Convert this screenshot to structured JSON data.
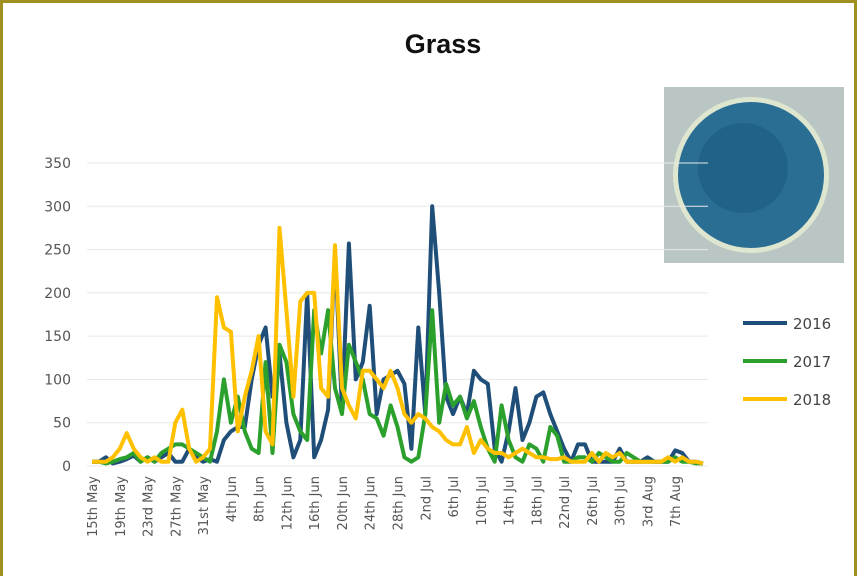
{
  "chart_data": {
    "type": "line",
    "title": "Grass",
    "categories": [
      "15th May",
      null,
      null,
      null,
      "19th May",
      null,
      null,
      null,
      "23rd May",
      null,
      null,
      null,
      "27th May",
      null,
      null,
      null,
      "31st May",
      null,
      null,
      null,
      "4th Jun",
      null,
      null,
      null,
      "8th Jun",
      null,
      null,
      null,
      "12th Jun",
      null,
      null,
      null,
      "16th Jun",
      null,
      null,
      null,
      "20th Jun",
      null,
      null,
      null,
      "24th Jun",
      null,
      null,
      null,
      "28th Jun",
      null,
      null,
      null,
      "2nd Jul",
      null,
      null,
      null,
      "6th Jul",
      null,
      null,
      null,
      "10th Jul",
      null,
      null,
      null,
      "14th Jul",
      null,
      null,
      null,
      "18th Jul",
      null,
      null,
      null,
      "22nd Jul",
      null,
      null,
      null,
      "26th Jul",
      null,
      null,
      null,
      "30th Jul",
      null,
      null,
      null,
      "3rd Aug",
      null,
      null,
      null,
      "7th Aug",
      null,
      null,
      null,
      null
    ],
    "series": [
      {
        "name": "2016",
        "color": "#1f4e79",
        "values": [
          5,
          5,
          10,
          3,
          5,
          8,
          12,
          5,
          10,
          5,
          10,
          15,
          5,
          5,
          20,
          10,
          5,
          8,
          5,
          30,
          40,
          45,
          45,
          100,
          140,
          160,
          80,
          130,
          50,
          10,
          30,
          200,
          10,
          30,
          65,
          250,
          65,
          257,
          100,
          120,
          185,
          60,
          100,
          105,
          110,
          95,
          20,
          160,
          60,
          300,
          200,
          80,
          60,
          80,
          60,
          110,
          100,
          95,
          20,
          5,
          40,
          90,
          30,
          50,
          80,
          85,
          60,
          40,
          20,
          5,
          25,
          25,
          5,
          5,
          5,
          5,
          20,
          5,
          5,
          5,
          10,
          5,
          5,
          5,
          18,
          15,
          5,
          5,
          3
        ]
      },
      {
        "name": "2017",
        "color": "#2ca02c",
        "values": [
          5,
          5,
          3,
          5,
          8,
          10,
          15,
          5,
          10,
          5,
          15,
          20,
          25,
          25,
          20,
          15,
          10,
          5,
          40,
          100,
          50,
          80,
          40,
          20,
          15,
          120,
          15,
          140,
          120,
          60,
          40,
          30,
          180,
          130,
          180,
          90,
          60,
          140,
          120,
          100,
          60,
          55,
          35,
          70,
          45,
          10,
          5,
          10,
          60,
          180,
          50,
          95,
          70,
          80,
          55,
          75,
          45,
          20,
          5,
          70,
          30,
          10,
          5,
          25,
          20,
          5,
          45,
          35,
          5,
          5,
          10,
          10,
          5,
          15,
          10,
          5,
          5,
          15,
          10,
          5,
          5,
          5,
          5,
          5,
          10,
          5,
          5,
          3,
          3
        ]
      },
      {
        "name": "2018",
        "color": "#ffc000",
        "values": [
          5,
          5,
          5,
          10,
          20,
          38,
          20,
          10,
          5,
          10,
          5,
          5,
          50,
          65,
          20,
          5,
          10,
          20,
          195,
          160,
          155,
          40,
          80,
          110,
          150,
          40,
          25,
          275,
          180,
          80,
          190,
          200,
          200,
          90,
          80,
          255,
          90,
          70,
          55,
          110,
          110,
          100,
          90,
          110,
          90,
          60,
          50,
          60,
          55,
          45,
          40,
          30,
          25,
          25,
          45,
          15,
          30,
          20,
          15,
          15,
          10,
          15,
          20,
          15,
          10,
          10,
          8,
          8,
          10,
          5,
          5,
          5,
          15,
          5,
          15,
          10,
          15,
          5,
          5,
          5,
          5,
          5,
          5,
          10,
          5,
          10,
          5,
          5,
          3
        ]
      }
    ],
    "ylim": [
      0,
      350
    ],
    "yticks": [
      0,
      50,
      100,
      150,
      200,
      250,
      300,
      350
    ],
    "grid": true
  }
}
